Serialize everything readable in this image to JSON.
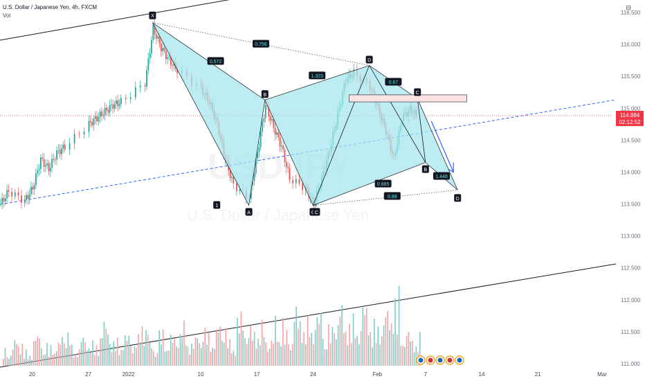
{
  "header": {
    "title": "U.S. Dollar / Japanese Yen, 4h, FXCM",
    "indicator": "Vol"
  },
  "settings_icon": "chart-settings-icon",
  "colors": {
    "up": "#26a69a",
    "down": "#ef5350",
    "pattern_fill": "#a7e5ee",
    "current_price": "#f23645",
    "trend": "#2962ff"
  },
  "watermark": {
    "symbol": "USDJPY",
    "name": "U.S. Dollar / Japanese Yen"
  },
  "current_price": {
    "value": "114.884",
    "countdown": "02:12:52"
  },
  "chart_data": {
    "type": "candlestick",
    "title": "U.S. Dollar / Japanese Yen, 4h, FXCM",
    "y_ticks": [
      "116.500",
      "116.000",
      "115.500",
      "115.000",
      "114.500",
      "114.000",
      "113.500",
      "113.000",
      "112.500",
      "112.000",
      "111.500",
      "111.000"
    ],
    "ylim": [
      111.0,
      116.5
    ],
    "x_ticks": [
      "20",
      "27",
      "2022",
      "10",
      "17",
      "24",
      "Feb",
      "7",
      "14",
      "21",
      "Mar"
    ],
    "close_path": [
      [
        "Dec 16",
        113.5
      ],
      [
        "Dec 17",
        113.7
      ],
      [
        "Dec 19",
        113.55
      ],
      [
        "Dec 20",
        113.75
      ],
      [
        "Dec 21",
        114.2
      ],
      [
        "Dec 22",
        114.05
      ],
      [
        "Dec 23",
        114.3
      ],
      [
        "Dec 24",
        114.4
      ],
      [
        "Dec 27",
        114.75
      ],
      [
        "Dec 28",
        114.85
      ],
      [
        "Dec 29",
        114.95
      ],
      [
        "Dec 30",
        115.05
      ],
      [
        "Dec 31",
        115.1
      ],
      [
        "Jan 3",
        115.4
      ],
      [
        "Jan 4",
        116.25
      ],
      [
        "Jan 5",
        115.95
      ],
      [
        "Jan 6",
        115.75
      ],
      [
        "Jan 7",
        115.6
      ],
      [
        "Jan 10",
        115.3
      ],
      [
        "Jan 11",
        115.1
      ],
      [
        "Jan 12",
        114.75
      ],
      [
        "Jan 13",
        114.2
      ],
      [
        "Jan 14",
        113.8
      ],
      [
        "Jan 16",
        113.6
      ],
      [
        "Jan 17",
        114.3
      ],
      [
        "Jan 18",
        115.05
      ],
      [
        "Jan 19",
        114.7
      ],
      [
        "Jan 20",
        114.4
      ],
      [
        "Jan 21",
        113.9
      ],
      [
        "Jan 23",
        113.75
      ],
      [
        "Jan 24",
        113.5
      ],
      [
        "Jan 25",
        113.9
      ],
      [
        "Jan 26",
        114.35
      ],
      [
        "Jan 27",
        114.9
      ],
      [
        "Jan 28",
        115.45
      ],
      [
        "Jan 29",
        115.55
      ],
      [
        "Jan 31",
        115.35
      ],
      [
        "Feb 1",
        115.0
      ],
      [
        "Feb 2",
        114.65
      ],
      [
        "Feb 3",
        114.2
      ],
      [
        "Feb 4",
        114.85
      ],
      [
        "Feb 5",
        114.98
      ],
      [
        "Feb 6",
        114.88
      ]
    ],
    "volume_relative": [
      0.22,
      0.35,
      0.18,
      0.4,
      0.27,
      0.3,
      0.48,
      0.24,
      0.38,
      0.29,
      0.55,
      0.33,
      0.41,
      0.36,
      0.62,
      0.28,
      0.45,
      0.39,
      0.52,
      0.34,
      0.47,
      0.43,
      0.58,
      0.31,
      0.66,
      0.49,
      0.53,
      0.37,
      0.61,
      0.44,
      0.72,
      0.57,
      0.68,
      0.5,
      0.75,
      0.63,
      0.59,
      0.8,
      0.54,
      0.7,
      0.92,
      0.46,
      0.38
    ],
    "pattern": {
      "points": [
        {
          "label": "X",
          "date": "Jan 4",
          "price": 116.34
        },
        {
          "label": "A",
          "date": "Jan 16",
          "price": 113.48
        },
        {
          "label": "B",
          "date": "Jan 18",
          "price": 115.13
        },
        {
          "label": "C",
          "date": "Jan 24",
          "price": 113.48
        },
        {
          "label": "D",
          "date": "Jan 31",
          "price": 115.67
        },
        {
          "label": "B",
          "date": "Feb 7",
          "price": 114.15
        },
        {
          "label": "C",
          "date": "Feb 6",
          "price": 115.15
        },
        {
          "label": "D",
          "date": "Feb 11",
          "price": 113.72
        },
        {
          "label": "C",
          "date": "Jan 24",
          "price": 113.48
        },
        {
          "label": "1",
          "date": "Jan 12",
          "price": 113.48
        }
      ],
      "ratios": [
        "0.756",
        "0.572",
        "1.323",
        "0.67",
        "0.885",
        "1.448",
        "0.89"
      ]
    },
    "grid": false
  }
}
